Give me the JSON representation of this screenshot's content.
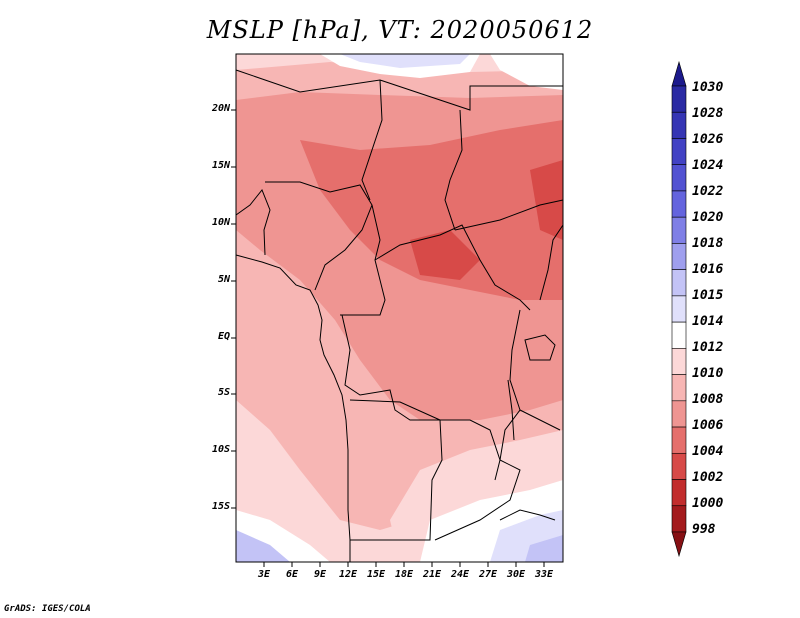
{
  "title": "MSLP [hPa], VT: 2020050612",
  "footer": "GrADS: IGES/COLA",
  "map": {
    "variable": "MSLP",
    "units": "hPa",
    "valid_time": "2020050612",
    "lat_ticks": [
      "20N",
      "15N",
      "10N",
      "5N",
      "EQ",
      "5S",
      "10S",
      "15S"
    ],
    "lon_ticks": [
      "3E",
      "6E",
      "9E",
      "12E",
      "15E",
      "18E",
      "21E",
      "24E",
      "27E",
      "30E",
      "33E"
    ],
    "lon_range": [
      0,
      35
    ],
    "lat_range": [
      -20,
      24.5
    ]
  },
  "colorbar": {
    "levels": [
      "1030",
      "1028",
      "1026",
      "1024",
      "1022",
      "1020",
      "1018",
      "1016",
      "1015",
      "1014",
      "1012",
      "1010",
      "1008",
      "1006",
      "1004",
      "1002",
      "1000",
      "998"
    ],
    "colors": [
      "#1c1a8c",
      "#2a2aa3",
      "#3535b4",
      "#4242c4",
      "#5252d2",
      "#6464de",
      "#7f7fe6",
      "#9f9fee",
      "#c3c3f6",
      "#e0e0fb",
      "#ffffff",
      "#fcd8d8",
      "#f7b6b4",
      "#ef9592",
      "#e56f6c",
      "#d74a48",
      "#c22d2d",
      "#a31a1d",
      "#861014"
    ]
  }
}
